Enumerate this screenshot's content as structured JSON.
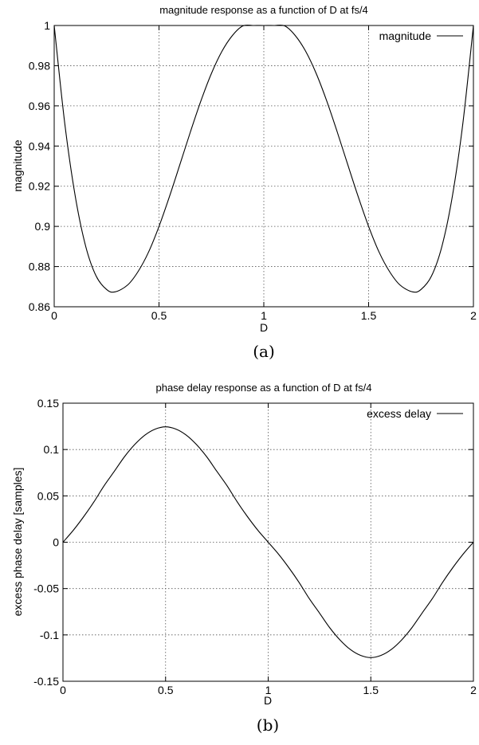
{
  "chart_data": [
    {
      "type": "line",
      "title": "magnitude response as a function of D at fs/4",
      "xlabel": "D",
      "ylabel": "magnitude",
      "xlim": [
        0,
        2
      ],
      "ylim": [
        0.86,
        1
      ],
      "xticks": [
        0,
        0.5,
        1,
        1.5,
        2
      ],
      "xtick_labels": [
        "0",
        "0.5",
        "1",
        "1.5",
        "2"
      ],
      "yticks": [
        0.86,
        0.88,
        0.9,
        0.92,
        0.94,
        0.96,
        0.98,
        1
      ],
      "ytick_labels": [
        "0.86",
        "0.88",
        "0.9",
        "0.92",
        "0.94",
        "0.96",
        "0.98",
        "1"
      ],
      "grid": true,
      "legend_position": "top-right",
      "series": [
        {
          "name": "magnitude",
          "color": "#000000",
          "x": [
            0,
            0.05,
            0.1,
            0.15,
            0.2,
            0.25,
            0.29,
            0.35,
            0.4,
            0.45,
            0.5,
            0.55,
            0.6,
            0.65,
            0.7,
            0.75,
            0.8,
            0.85,
            0.9,
            0.95,
            1,
            1.05,
            1.1,
            1.15,
            1.2,
            1.25,
            1.3,
            1.35,
            1.4,
            1.45,
            1.5,
            1.55,
            1.6,
            1.65,
            1.71,
            1.75,
            1.8,
            1.85,
            1.9,
            1.95,
            2
          ],
          "y": [
            1.0,
            0.9516,
            0.9153,
            0.8902,
            0.8753,
            0.8686,
            0.8674,
            0.8708,
            0.8775,
            0.8872,
            0.9,
            0.9149,
            0.9309,
            0.9471,
            0.9625,
            0.9761,
            0.9871,
            0.995,
            0.9998,
            1.0,
            1.0,
            1.0,
            0.9998,
            0.995,
            0.9871,
            0.9761,
            0.9625,
            0.9471,
            0.9309,
            0.9149,
            0.9,
            0.8872,
            0.8775,
            0.8708,
            0.8674,
            0.8686,
            0.8753,
            0.8902,
            0.9153,
            0.9516,
            1.0
          ]
        }
      ],
      "caption": "(a)"
    },
    {
      "type": "line",
      "title": "phase delay response as a function of D at fs/4",
      "xlabel": "D",
      "ylabel": "excess phase delay [samples]",
      "xlim": [
        0,
        2
      ],
      "ylim": [
        -0.15,
        0.15
      ],
      "xticks": [
        0,
        0.5,
        1,
        1.5,
        2
      ],
      "xtick_labels": [
        "0",
        "0.5",
        "1",
        "1.5",
        "2"
      ],
      "yticks": [
        -0.15,
        -0.1,
        -0.05,
        0,
        0.05,
        0.1,
        0.15
      ],
      "ytick_labels": [
        "-0.15",
        "-0.1",
        "-0.05",
        "0",
        "0.05",
        "0.1",
        "0.15"
      ],
      "grid": true,
      "legend_position": "top-right",
      "series": [
        {
          "name": "excess delay",
          "color": "#000000",
          "x": [
            0,
            0.05,
            0.1,
            0.15,
            0.2,
            0.25,
            0.3,
            0.35,
            0.4,
            0.45,
            0.5,
            0.55,
            0.6,
            0.65,
            0.7,
            0.75,
            0.8,
            0.85,
            0.9,
            0.95,
            1,
            1.05,
            1.1,
            1.15,
            1.2,
            1.25,
            1.3,
            1.35,
            1.4,
            1.45,
            1.5,
            1.55,
            1.6,
            1.65,
            1.7,
            1.75,
            1.8,
            1.85,
            1.9,
            1.95,
            2
          ],
          "y": [
            0.0,
            0.0128,
            0.0273,
            0.0432,
            0.0608,
            0.0764,
            0.0923,
            0.1055,
            0.1157,
            0.1221,
            0.1245,
            0.1221,
            0.1157,
            0.1055,
            0.0923,
            0.0764,
            0.0608,
            0.0432,
            0.0273,
            0.0128,
            0.0,
            -0.0128,
            -0.0273,
            -0.0432,
            -0.0608,
            -0.0764,
            -0.0923,
            -0.1055,
            -0.1157,
            -0.1221,
            -0.1245,
            -0.1221,
            -0.1157,
            -0.1055,
            -0.0923,
            -0.0764,
            -0.0608,
            -0.0432,
            -0.0273,
            -0.0128,
            0.0
          ]
        }
      ],
      "caption": "(b)"
    }
  ]
}
